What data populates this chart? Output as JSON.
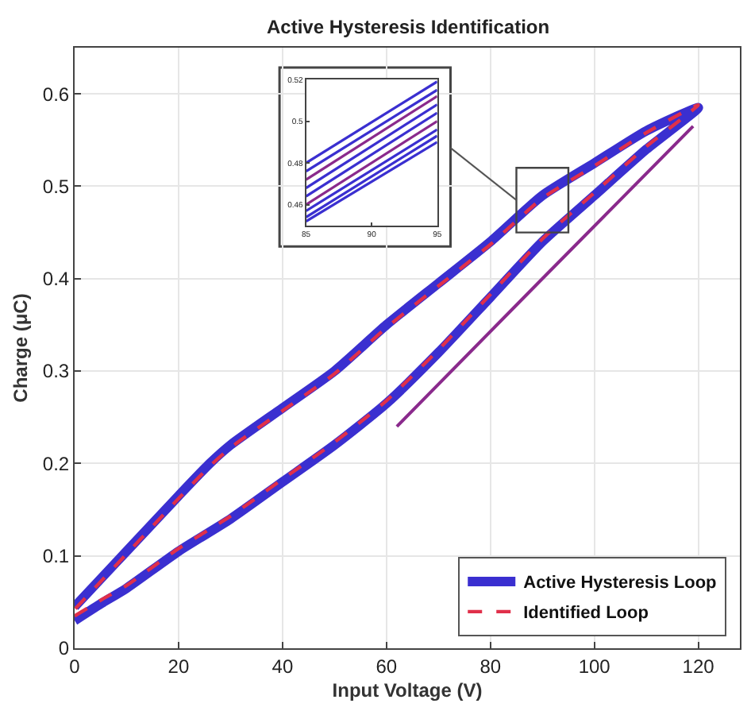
{
  "chart_data": [
    {
      "type": "line",
      "title": "Active Hysteresis Identification",
      "xlabel": "Input Voltage (V)",
      "ylabel": "Charge (μC)",
      "xlim": [
        0,
        128
      ],
      "ylim": [
        0,
        0.65
      ],
      "xticks": [
        0,
        20,
        40,
        60,
        80,
        100,
        120
      ],
      "yticks": [
        0,
        0.1,
        0.2,
        0.3,
        0.4,
        0.5,
        0.6
      ],
      "grid": true,
      "legend": "bottom right",
      "series": [
        {
          "name": "Active Hysteresis Loop",
          "color": "#3a2fd0",
          "line_style": "solid",
          "x": [
            0,
            5,
            10,
            20,
            30,
            40,
            50,
            60,
            70,
            80,
            90,
            100,
            110,
            120,
            110,
            100,
            90,
            80,
            70,
            60,
            50,
            40,
            30,
            26,
            20,
            10,
            5,
            0
          ],
          "values": [
            0.03,
            0.048,
            0.065,
            0.105,
            0.14,
            0.18,
            0.22,
            0.265,
            0.32,
            0.38,
            0.44,
            0.49,
            0.54,
            0.585,
            0.56,
            0.525,
            0.49,
            0.44,
            0.395,
            0.35,
            0.3,
            0.26,
            0.22,
            0.2,
            0.165,
            0.105,
            0.075,
            0.045
          ]
        },
        {
          "name": "Identified Loop",
          "color": "#e0304a",
          "line_style": "dashed",
          "x": [
            0,
            5,
            10,
            20,
            30,
            40,
            50,
            60,
            70,
            80,
            90,
            100,
            110,
            120,
            110,
            100,
            90,
            80,
            70,
            60,
            50,
            40,
            30,
            26,
            20,
            10,
            5,
            0
          ],
          "values": [
            0.035,
            0.052,
            0.068,
            0.108,
            0.143,
            0.183,
            0.223,
            0.268,
            0.323,
            0.383,
            0.443,
            0.493,
            0.543,
            0.588,
            0.558,
            0.522,
            0.487,
            0.437,
            0.392,
            0.347,
            0.297,
            0.257,
            0.217,
            0.197,
            0.162,
            0.102,
            0.072,
            0.042
          ]
        },
        {
          "color": "#8a2a8c",
          "line_style": "solid",
          "x": [
            62,
            90,
            119
          ],
          "values": [
            0.24,
            0.4,
            0.565
          ]
        }
      ]
    },
    {
      "type": "line",
      "xlim": [
        85,
        95
      ],
      "ylim": [
        0.45,
        0.52
      ],
      "xticks": [
        85,
        90,
        95
      ],
      "yticks": [
        0.46,
        0.48,
        0.5,
        0.52
      ],
      "grid": false,
      "series": [
        {
          "color": "#3a2fd0",
          "x": [
            85,
            95
          ],
          "values": [
            0.48,
            0.519
          ]
        },
        {
          "color": "#3a2fd0",
          "x": [
            85,
            95
          ],
          "values": [
            0.476,
            0.515
          ]
        },
        {
          "color": "#8a2a8c",
          "x": [
            85,
            95
          ],
          "values": [
            0.472,
            0.512
          ]
        },
        {
          "color": "#3a2fd0",
          "x": [
            85,
            95
          ],
          "values": [
            0.468,
            0.508
          ]
        },
        {
          "color": "#3a2fd0",
          "x": [
            85,
            95
          ],
          "values": [
            0.464,
            0.504
          ]
        },
        {
          "color": "#8a2a8c",
          "x": [
            85,
            95
          ],
          "values": [
            0.46,
            0.5
          ]
        },
        {
          "color": "#3a2fd0",
          "x": [
            85,
            95
          ],
          "values": [
            0.457,
            0.496
          ]
        },
        {
          "color": "#3a2fd0",
          "x": [
            85,
            95
          ],
          "values": [
            0.454,
            0.493
          ]
        },
        {
          "color": "#3a2fd0",
          "x": [
            85,
            95
          ],
          "values": [
            0.452,
            0.49
          ]
        }
      ]
    }
  ]
}
